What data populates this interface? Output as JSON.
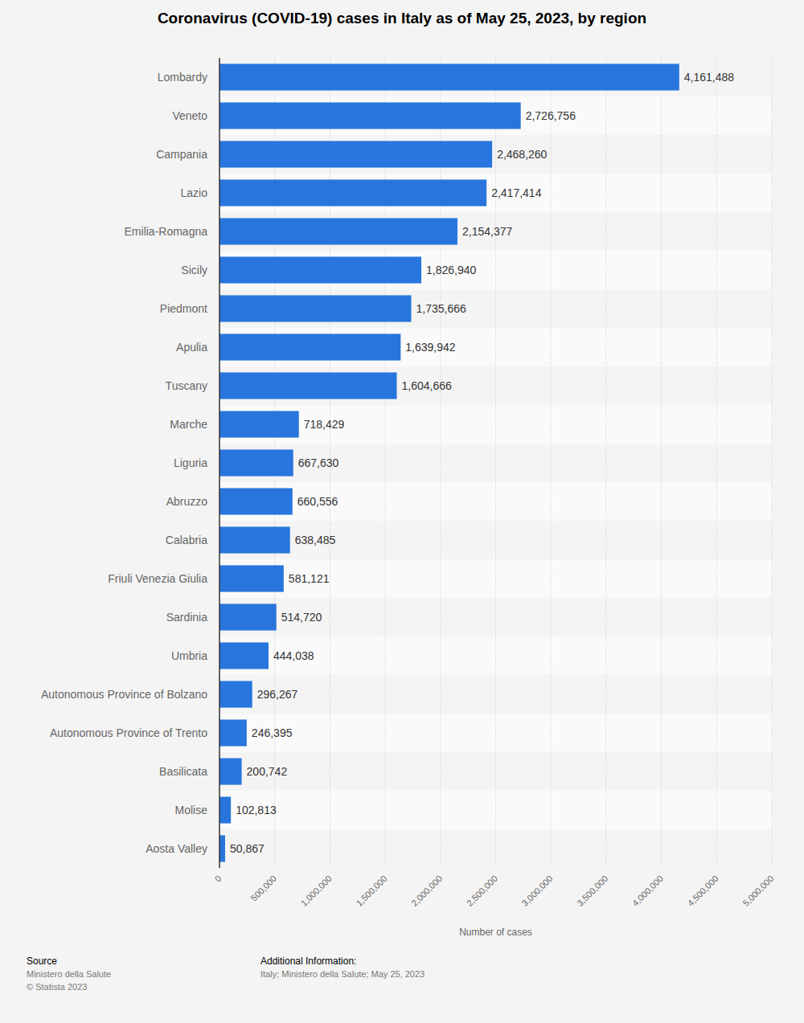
{
  "chart_data": {
    "type": "bar",
    "orientation": "horizontal",
    "title": "Coronavirus (COVID-19) cases in Italy as of May 25, 2023, by region",
    "xlabel": "Number of cases",
    "categories": [
      "Lombardy",
      "Veneto",
      "Campania",
      "Lazio",
      "Emilia-Romagna",
      "Sicily",
      "Piedmont",
      "Apulia",
      "Tuscany",
      "Marche",
      "Liguria",
      "Abruzzo",
      "Calabria",
      "Friuli Venezia Giulia",
      "Sardinia",
      "Umbria",
      "Autonomous Province of Bolzano",
      "Autonomous Province of Trento",
      "Basilicata",
      "Molise",
      "Aosta Valley"
    ],
    "values": [
      4161488,
      2726756,
      2468260,
      2417414,
      2154377,
      1826940,
      1735666,
      1639942,
      1604666,
      718429,
      667630,
      660556,
      638485,
      581121,
      514720,
      444038,
      296267,
      246395,
      200742,
      102813,
      50867
    ],
    "value_labels": [
      "4,161,488",
      "2,726,756",
      "2,468,260",
      "2,417,414",
      "2,154,377",
      "1,826,940",
      "1,735,666",
      "1,639,942",
      "1,604,666",
      "718,429",
      "667,630",
      "660,556",
      "638,485",
      "581,121",
      "514,720",
      "444,038",
      "296,267",
      "246,395",
      "200,742",
      "102,813",
      "50,867"
    ],
    "data_labels": true,
    "color": "#2876dd",
    "xlim": [
      0,
      5000000
    ],
    "xticks": [
      0,
      {
        "value": 500000,
        "label": "500,000"
      },
      {
        "value": 1000000,
        "label": "1,000,000"
      },
      {
        "value": 1500000,
        "label": "1,500,000"
      },
      {
        "value": 2000000,
        "label": "2,000,000"
      },
      {
        "value": 2500000,
        "label": "2,500,000"
      },
      {
        "value": 3000000,
        "label": "3,000,000"
      },
      {
        "value": 3500000,
        "label": "3,500,000"
      },
      {
        "value": 4000000,
        "label": "4,000,000"
      },
      {
        "value": 4500000,
        "label": "4,500,000"
      },
      {
        "value": 5000000,
        "label": "5,000,000"
      }
    ],
    "grid": true,
    "source_label": "Source",
    "source": "Ministero della Salute",
    "copyright": "© Statista 2023",
    "additional_info_label": "Additional Information:",
    "additional_info": "Italy; Ministero della Salute; May 25, 2023"
  }
}
